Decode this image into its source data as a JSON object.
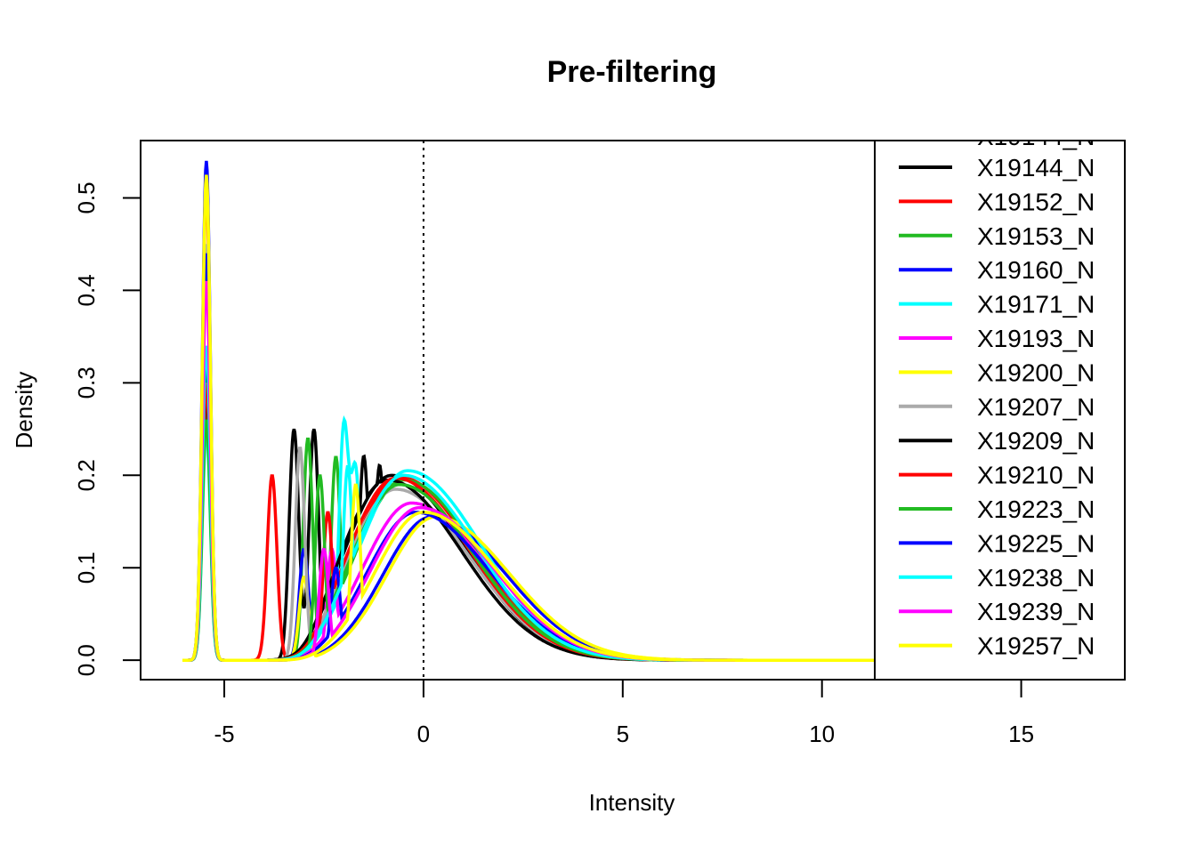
{
  "chart_data": {
    "type": "line",
    "title": "Pre-filtering",
    "xlabel": "Intensity",
    "ylabel": "Density",
    "xlim": [
      -7.1,
      17.6
    ],
    "ylim": [
      -0.021,
      0.562
    ],
    "x_ticks": [
      -5,
      0,
      5,
      10,
      15
    ],
    "y_ticks": [
      0.0,
      0.1,
      0.2,
      0.3,
      0.4,
      0.5
    ],
    "x_tick_labels": [
      "-5",
      "0",
      "5",
      "10",
      "15"
    ],
    "y_tick_labels": [
      "0.0",
      "0.1",
      "0.2",
      "0.3",
      "0.4",
      "0.5"
    ],
    "reference_line": {
      "x": 0,
      "style": "dotted"
    },
    "grid": false,
    "legend_position": "top-right, clipped at top",
    "legend_partial_entry": "X19144_N",
    "series": [
      {
        "name": "X19144_N",
        "color": "#000000",
        "spike": {
          "x": -5.45,
          "y": 0.32
        },
        "mid_peaks": [
          {
            "x": -3.25,
            "y": 0.25
          },
          {
            "x": -2.75,
            "y": 0.25
          }
        ],
        "main_peak": {
          "x": -0.8,
          "y": 0.2
        }
      },
      {
        "name": "X19152_N",
        "color": "#ff0000",
        "spike": {
          "x": -5.45,
          "y": 0.51
        },
        "mid_peaks": [
          {
            "x": -3.8,
            "y": 0.2
          }
        ],
        "main_peak": {
          "x": -0.6,
          "y": 0.198
        }
      },
      {
        "name": "X19153_N",
        "color": "#22bb22",
        "spike": {
          "x": -5.45,
          "y": 0.27
        },
        "mid_peaks": [
          {
            "x": -2.9,
            "y": 0.24
          },
          {
            "x": -2.2,
            "y": 0.22
          }
        ],
        "main_peak": {
          "x": -0.5,
          "y": 0.195
        }
      },
      {
        "name": "X19160_N",
        "color": "#0000ff",
        "spike": {
          "x": -5.45,
          "y": 0.54
        },
        "mid_peaks": [
          {
            "x": -3.0,
            "y": 0.12
          }
        ],
        "main_peak": {
          "x": 0.2,
          "y": 0.155
        }
      },
      {
        "name": "X19171_N",
        "color": "#00ffff",
        "spike": {
          "x": -5.45,
          "y": 0.25
        },
        "mid_peaks": [
          {
            "x": -2.0,
            "y": 0.25
          },
          {
            "x": -1.7,
            "y": 0.2
          }
        ],
        "main_peak": {
          "x": -0.4,
          "y": 0.205
        }
      },
      {
        "name": "X19193_N",
        "color": "#ff00ff",
        "spike": {
          "x": -5.45,
          "y": 0.42
        },
        "mid_peaks": [
          {
            "x": -2.3,
            "y": 0.12
          }
        ],
        "main_peak": {
          "x": -0.3,
          "y": 0.17
        }
      },
      {
        "name": "X19200_N",
        "color": "#ffff00",
        "spike": {
          "x": -5.45,
          "y": 0.525
        },
        "mid_peaks": [
          {
            "x": -3.0,
            "y": 0.09
          }
        ],
        "main_peak": {
          "x": 0.3,
          "y": 0.155
        }
      },
      {
        "name": "X19207_N",
        "color": "#aaaaaa",
        "spike": {
          "x": -5.45,
          "y": 0.45
        },
        "mid_peaks": [
          {
            "x": -3.1,
            "y": 0.23
          }
        ],
        "main_peak": {
          "x": -0.7,
          "y": 0.185
        }
      },
      {
        "name": "X19209_N",
        "color": "#000000",
        "spike": {
          "x": -5.45,
          "y": 0.29
        },
        "mid_peaks": [
          {
            "x": -1.5,
            "y": 0.22
          },
          {
            "x": -1.1,
            "y": 0.21
          }
        ],
        "main_peak": {
          "x": -0.9,
          "y": 0.195
        }
      },
      {
        "name": "X19210_N",
        "color": "#ff0000",
        "spike": {
          "x": -5.45,
          "y": 0.3
        },
        "mid_peaks": [
          {
            "x": -2.4,
            "y": 0.16
          }
        ],
        "main_peak": {
          "x": -0.7,
          "y": 0.197
        }
      },
      {
        "name": "X19223_N",
        "color": "#22bb22",
        "spike": {
          "x": -5.45,
          "y": 0.26
        },
        "mid_peaks": [
          {
            "x": -2.6,
            "y": 0.2
          }
        ],
        "main_peak": {
          "x": -0.6,
          "y": 0.19
        }
      },
      {
        "name": "X19225_N",
        "color": "#0000ff",
        "spike": {
          "x": -5.45,
          "y": 0.44
        },
        "mid_peaks": [
          {
            "x": -2.2,
            "y": 0.1
          }
        ],
        "main_peak": {
          "x": -0.2,
          "y": 0.16
        }
      },
      {
        "name": "X19238_N",
        "color": "#00ffff",
        "spike": {
          "x": -5.45,
          "y": 0.34
        },
        "mid_peaks": [
          {
            "x": -1.9,
            "y": 0.21
          }
        ],
        "main_peak": {
          "x": -0.5,
          "y": 0.2
        }
      },
      {
        "name": "X19239_N",
        "color": "#ff00ff",
        "spike": {
          "x": -5.45,
          "y": 0.41
        },
        "mid_peaks": [
          {
            "x": -2.5,
            "y": 0.12
          }
        ],
        "main_peak": {
          "x": -0.1,
          "y": 0.165
        }
      },
      {
        "name": "X19257_N",
        "color": "#ffff00",
        "spike": {
          "x": -5.45,
          "y": 0.52
        },
        "mid_peaks": [
          {
            "x": -1.7,
            "y": 0.19
          }
        ],
        "main_peak": {
          "x": 0.0,
          "y": 0.16
        }
      }
    ]
  }
}
